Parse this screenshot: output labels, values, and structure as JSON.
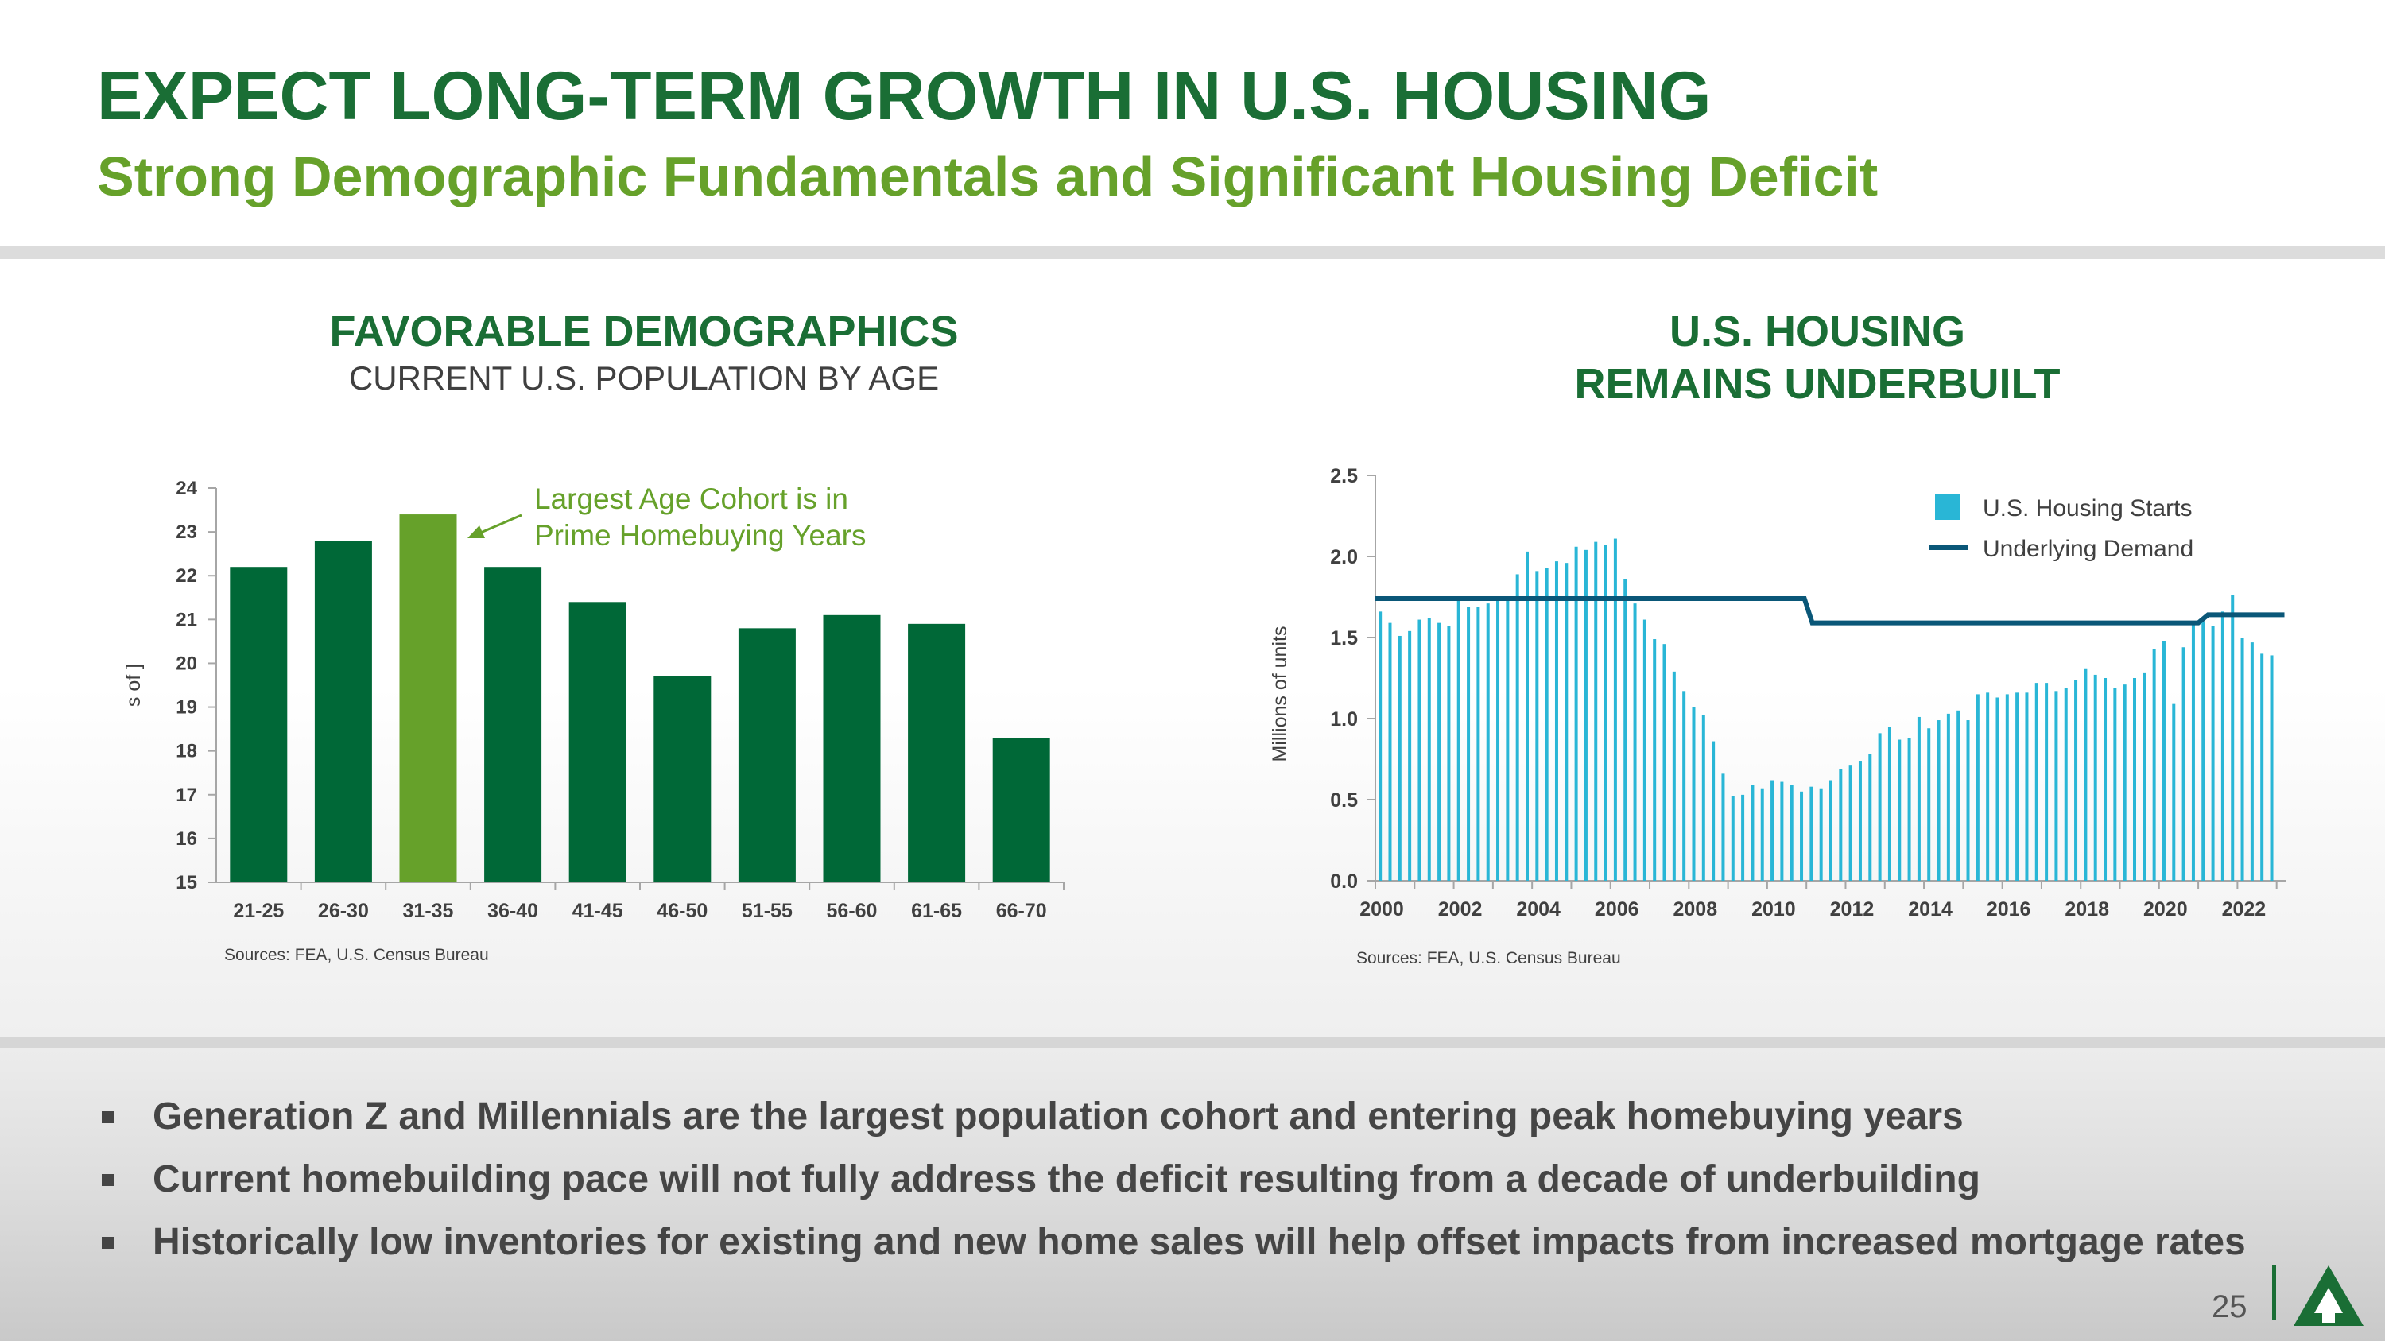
{
  "header": {
    "title": "EXPECT LONG-TERM GROWTH IN U.S. HOUSING",
    "subtitle": "Strong Demographic Fundamentals and Significant Housing Deficit"
  },
  "left_chart": {
    "heading": "FAVORABLE DEMOGRAPHICS",
    "subheading": "CURRENT U.S. POPULATION BY AGE",
    "source": "Sources: FEA, U.S. Census Bureau",
    "annotation_line1": "Largest Age Cohort is in",
    "annotation_line2": "Prime Homebuying Years",
    "ylabel_fragment": "s of ]",
    "colors": {
      "bar": "#006837",
      "highlight": "#66a12a"
    }
  },
  "right_chart": {
    "heading_line1": "U.S. HOUSING",
    "heading_line2": "REMAINS UNDERBUILT",
    "source": "Sources: FEA, U.S. Census Bureau",
    "colors": {
      "starts": "#29b6d6",
      "demand": "#0a5778"
    }
  },
  "chart_data": [
    {
      "type": "bar",
      "title": "CURRENT U.S. POPULATION BY AGE",
      "categories": [
        "21-25",
        "26-30",
        "31-35",
        "36-40",
        "41-45",
        "46-50",
        "51-55",
        "56-60",
        "61-65",
        "66-70"
      ],
      "values": [
        22.2,
        22.8,
        23.4,
        22.2,
        21.4,
        19.7,
        20.8,
        21.1,
        20.9,
        18.3
      ],
      "highlight_index": 2,
      "ylim": [
        15,
        24
      ],
      "yticks": [
        15,
        16,
        17,
        18,
        19,
        20,
        21,
        22,
        23,
        24
      ],
      "ylabel": "s of ]",
      "xlabel": ""
    },
    {
      "type": "bar",
      "title": "",
      "ylabel": "Millions of units",
      "ylim": [
        0,
        2.5
      ],
      "yticks": [
        "0.0",
        "0.5",
        "1.0",
        "1.5",
        "2.0",
        "2.5"
      ],
      "xticks": [
        "2000",
        "2002",
        "2004",
        "2006",
        "2008",
        "2010",
        "2012",
        "2014",
        "2016",
        "2018",
        "2020",
        "2022"
      ],
      "x_start": 2000.0,
      "x_step": 0.25,
      "series": [
        {
          "name": "U.S. Housing Starts",
          "values": [
            1.66,
            1.59,
            1.51,
            1.54,
            1.61,
            1.62,
            1.59,
            1.57,
            1.73,
            1.69,
            1.69,
            1.71,
            1.75,
            1.74,
            1.89,
            2.03,
            1.91,
            1.93,
            1.97,
            1.96,
            2.06,
            2.04,
            2.09,
            2.07,
            2.11,
            1.86,
            1.71,
            1.61,
            1.49,
            1.46,
            1.29,
            1.17,
            1.07,
            1.02,
            0.86,
            0.66,
            0.52,
            0.53,
            0.59,
            0.57,
            0.62,
            0.61,
            0.59,
            0.55,
            0.58,
            0.57,
            0.62,
            0.69,
            0.71,
            0.74,
            0.78,
            0.91,
            0.95,
            0.87,
            0.88,
            1.01,
            0.94,
            0.99,
            1.03,
            1.05,
            0.99,
            1.15,
            1.16,
            1.13,
            1.15,
            1.16,
            1.16,
            1.22,
            1.22,
            1.17,
            1.19,
            1.24,
            1.31,
            1.27,
            1.25,
            1.19,
            1.21,
            1.25,
            1.28,
            1.43,
            1.48,
            1.09,
            1.44,
            1.58,
            1.6,
            1.57,
            1.66,
            1.76,
            1.5,
            1.47,
            1.4,
            1.39
          ]
        },
        {
          "name": "Underlying Demand",
          "points": [
            [
              2000.0,
              1.74
            ],
            [
              2010.95,
              1.74
            ],
            [
              2011.15,
              1.59
            ],
            [
              2021.0,
              1.59
            ],
            [
              2021.25,
              1.64
            ],
            [
              2023.2,
              1.64
            ]
          ]
        }
      ],
      "legend": "top-right"
    }
  ],
  "bullets": [
    "Generation Z and Millennials are the largest population cohort and entering peak homebuying years",
    "Current homebuilding pace will not fully address the deficit resulting from a decade of underbuilding",
    "Historically low inventories for existing and new home sales will help offset impacts from increased mortgage rates"
  ],
  "footer": {
    "page_number": "25"
  }
}
